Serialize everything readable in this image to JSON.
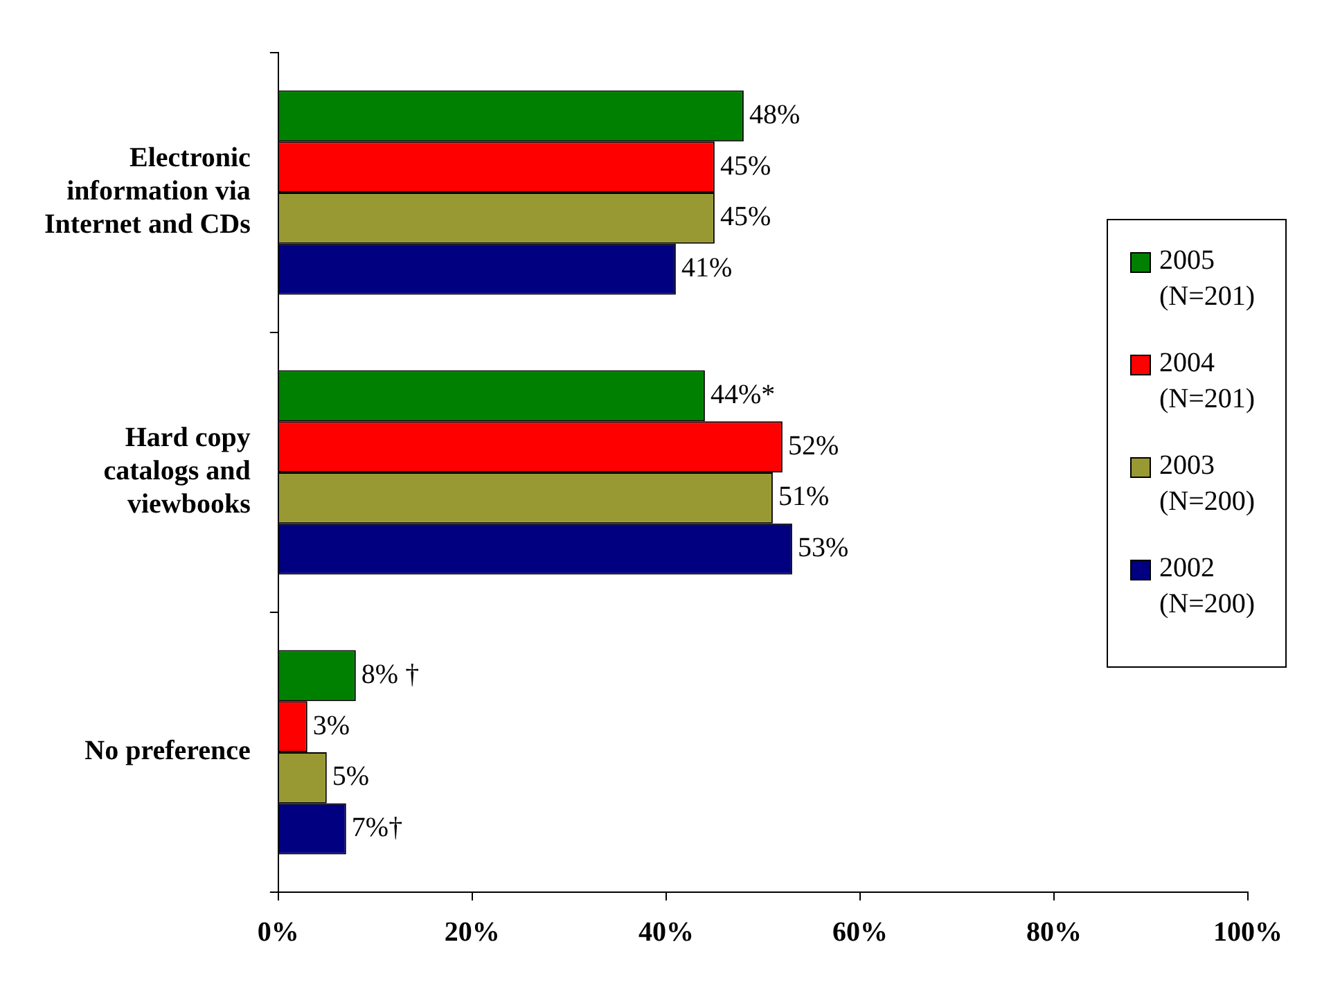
{
  "chart_data": {
    "type": "bar",
    "orientation": "horizontal",
    "categories": [
      "Electronic information via Internet and CDs",
      "Hard copy catalogs and viewbooks",
      "No preference"
    ],
    "series": [
      {
        "name": "2005 (N=201)",
        "color": "#008000",
        "values": [
          48,
          44,
          8
        ],
        "value_labels": [
          "48%",
          "44%*",
          "8% †"
        ]
      },
      {
        "name": "2004 (N=201)",
        "color": "#ff0000",
        "values": [
          45,
          52,
          3
        ],
        "value_labels": [
          "45%",
          "52%",
          "3%"
        ]
      },
      {
        "name": "2003 (N=200)",
        "color": "#999933",
        "values": [
          45,
          51,
          5
        ],
        "value_labels": [
          "45%",
          "51%",
          "5%"
        ]
      },
      {
        "name": "2002 (N=200)",
        "color": "#000080",
        "values": [
          41,
          53,
          7
        ],
        "value_labels": [
          "41%",
          "53%",
          "7%†"
        ]
      }
    ],
    "xlim": [
      0,
      100
    ],
    "xticks": [
      {
        "value": 0,
        "label": "0%"
      },
      {
        "value": 20,
        "label": "20%"
      },
      {
        "value": 40,
        "label": "40%"
      },
      {
        "value": 60,
        "label": "60%"
      },
      {
        "value": 80,
        "label": "80%"
      },
      {
        "value": 100,
        "label": "100%"
      }
    ],
    "grid": false,
    "legend": "right"
  }
}
